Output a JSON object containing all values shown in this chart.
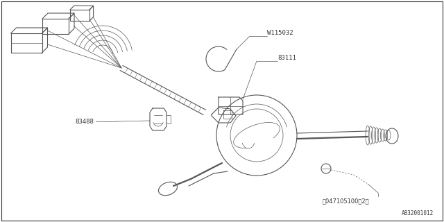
{
  "background_color": "#ffffff",
  "line_color": "#888888",
  "dark_line_color": "#555555",
  "diagram_number": "A832001012",
  "label_W115032": "W115032",
  "label_83111": "83111",
  "label_83488": "83488",
  "label_screw": "Ⓢ047105100（2）",
  "fig_width": 6.4,
  "fig_height": 3.2,
  "dpi": 100,
  "lw_main": 0.8,
  "lw_thin": 0.5,
  "font_size": 6.5
}
